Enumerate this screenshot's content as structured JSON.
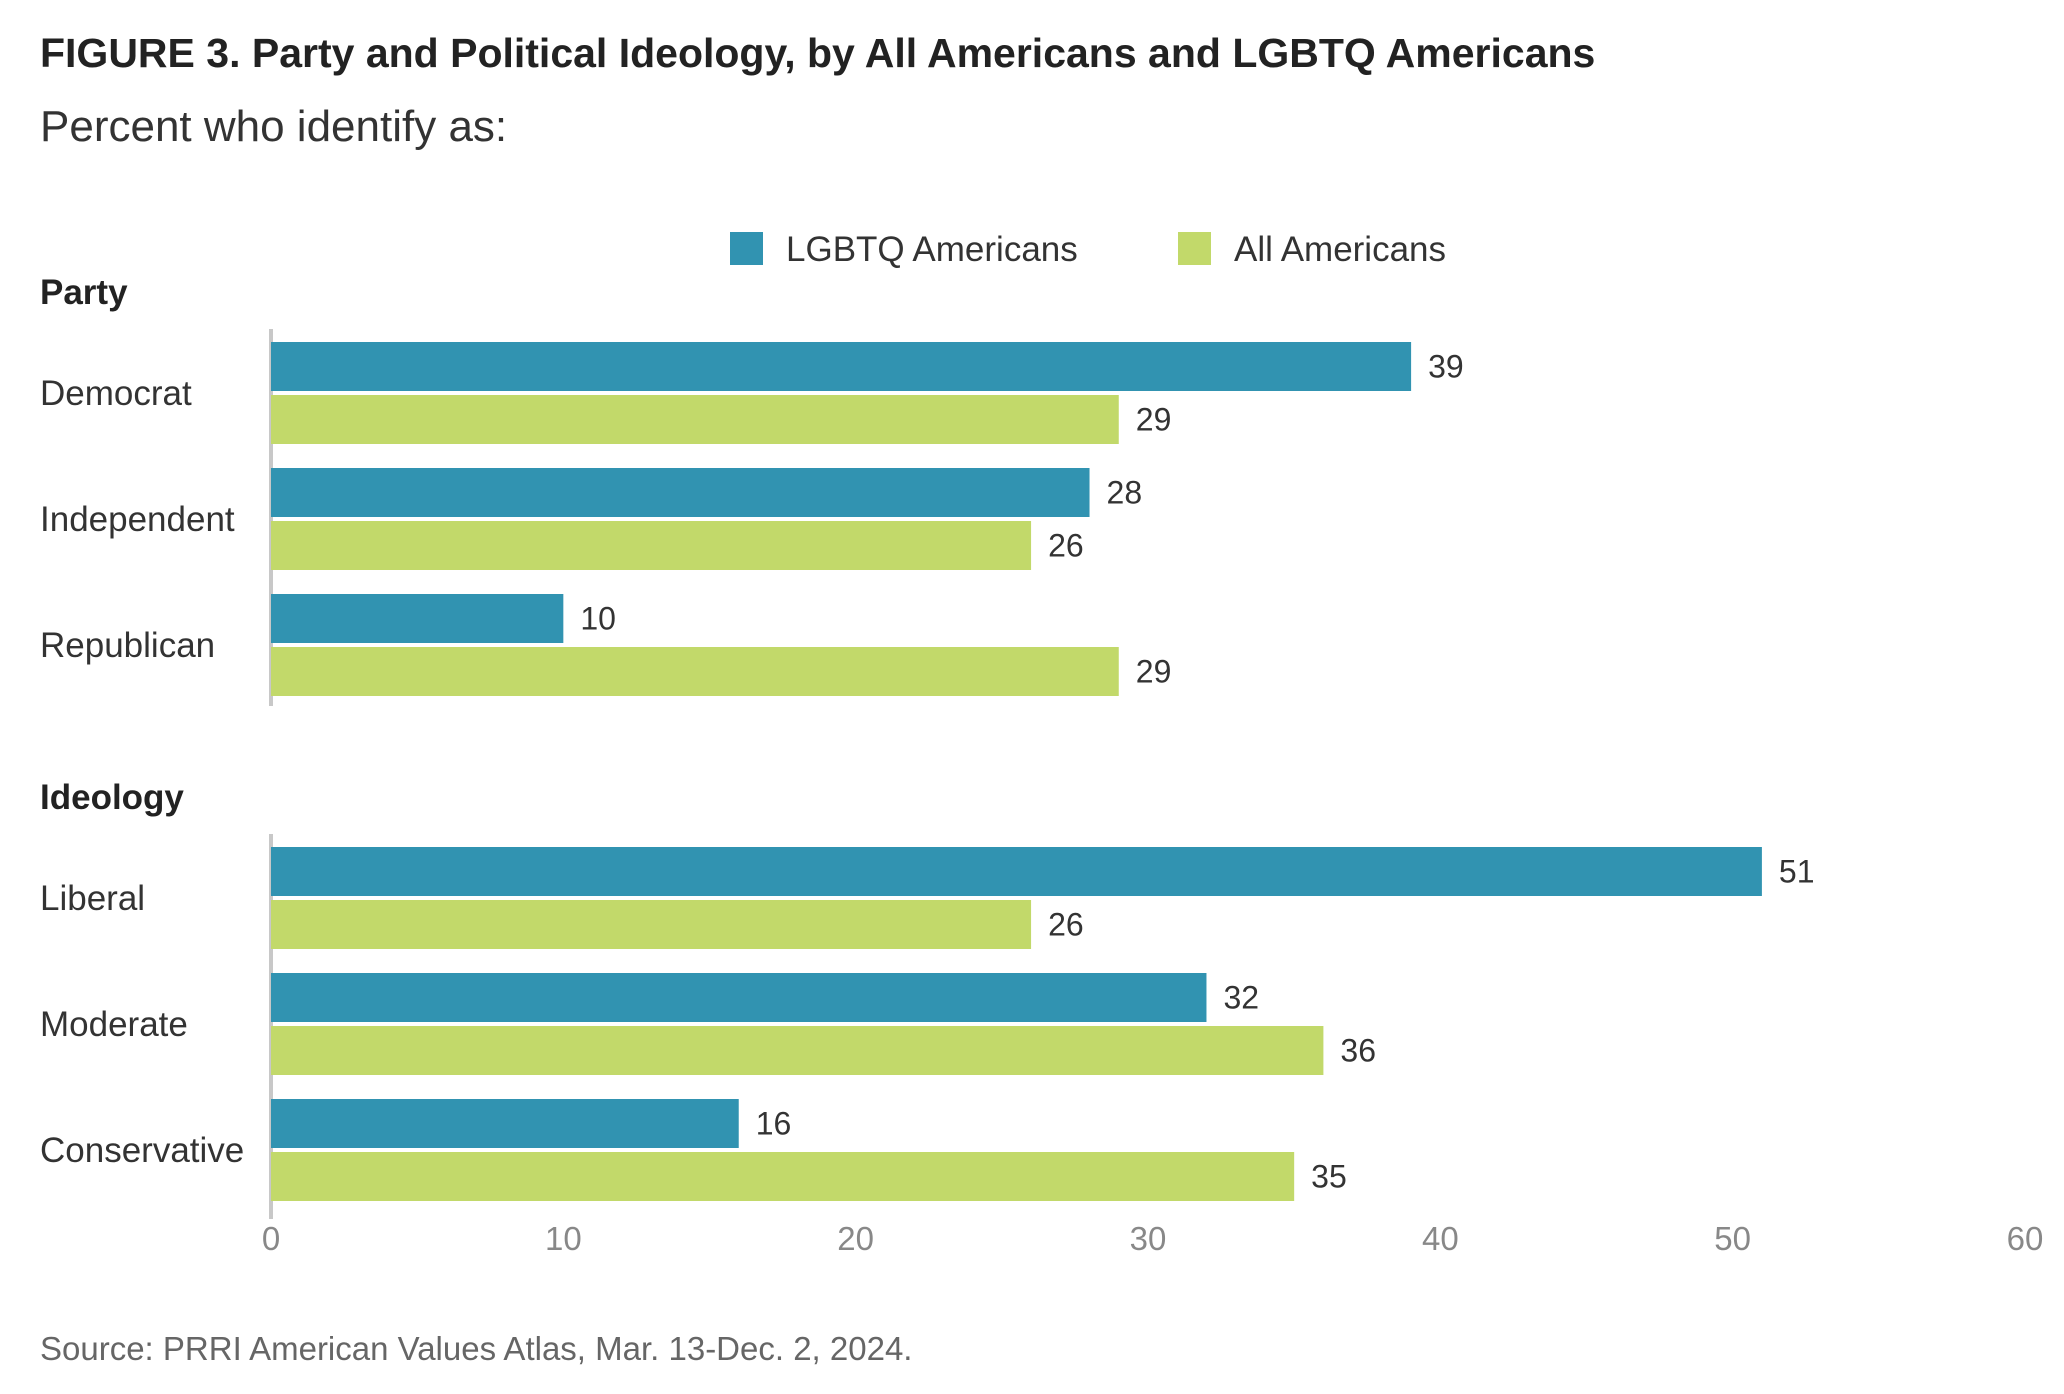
{
  "figure": {
    "title": "FIGURE 3. Party and Political Ideology, by All Americans and LGBTQ Americans",
    "subtitle": "Percent who identify as:",
    "source": "Source: PRRI American Values Atlas, Mar. 13-Dec. 2, 2024."
  },
  "chart_data": {
    "type": "bar",
    "orientation": "horizontal",
    "grid": false,
    "legend_position": "top",
    "xlim": [
      0,
      60
    ],
    "x_ticks": [
      0,
      10,
      20,
      30,
      40,
      50,
      60
    ],
    "colors": {
      "LGBTQ Americans": "#3193b1",
      "All Americans": "#c2d96a"
    },
    "series": [
      {
        "name": "LGBTQ Americans"
      },
      {
        "name": "All Americans"
      }
    ],
    "groups": [
      {
        "label": "Party",
        "categories": [
          "Democrat",
          "Independent",
          "Republican"
        ],
        "values": {
          "LGBTQ Americans": [
            39,
            28,
            10
          ],
          "All Americans": [
            29,
            26,
            29
          ]
        }
      },
      {
        "label": "Ideology",
        "categories": [
          "Liberal",
          "Moderate",
          "Conservative"
        ],
        "values": {
          "LGBTQ Americans": [
            51,
            32,
            16
          ],
          "All Americans": [
            26,
            36,
            35
          ]
        }
      }
    ]
  }
}
